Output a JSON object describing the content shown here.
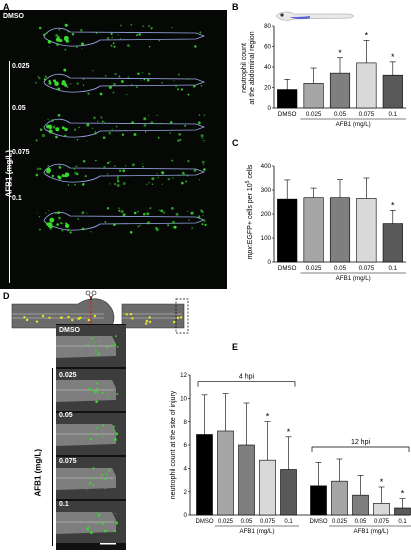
{
  "panels": {
    "A": {
      "letter": "A",
      "control": "DMSO",
      "doses": [
        "0.025",
        "0.05",
        "0.075",
        "0.1"
      ],
      "axis_label": "AFB1 (mg/L)"
    },
    "B": {
      "letter": "B"
    },
    "C": {
      "letter": "C"
    },
    "D": {
      "letter": "D",
      "control": "DMSO",
      "doses": [
        "0.025",
        "0.05",
        "0.075",
        "0.1"
      ],
      "axis_label": "AFB1 (mg/L)"
    },
    "E": {
      "letter": "E"
    }
  },
  "colors": {
    "DMSO": "#000000",
    "0.025": "#a6a6a6",
    "0.05": "#7f7f7f",
    "0.075": "#d9d9d9",
    "0.1": "#595959",
    "fluorescence": "#39d82f",
    "outline": "#9aa8e8"
  },
  "chart_data": [
    {
      "id": "B",
      "type": "bar",
      "categories": [
        "DMSO",
        "0.025",
        "0.05",
        "0.075",
        "0.1"
      ],
      "values": [
        18,
        24,
        34,
        44,
        32
      ],
      "errors": [
        10,
        15,
        15,
        22,
        13
      ],
      "significant": [
        false,
        false,
        true,
        true,
        true
      ],
      "ylabel": "neutrophil count\nat the abdominal region",
      "xlabel": "AFB1 (mg/L)",
      "ylim": [
        0,
        80
      ],
      "yticks": [
        0,
        20,
        40,
        60,
        80
      ]
    },
    {
      "id": "C",
      "type": "bar",
      "categories": [
        "DMSO",
        "0.025",
        "0.05",
        "0.075",
        "0.1"
      ],
      "values": [
        262,
        268,
        268,
        265,
        160
      ],
      "errors": [
        80,
        40,
        75,
        85,
        55
      ],
      "significant": [
        false,
        false,
        false,
        false,
        true
      ],
      "ylabel_italic": "mpx",
      "ylabel_main": ":EGFP+ cells per 10",
      "ylabel_sup": "5",
      "ylabel_end": " cells",
      "xlabel": "AFB1 (mg/L)",
      "ylim": [
        0,
        400
      ],
      "yticks": [
        0,
        100,
        200,
        300,
        400
      ]
    },
    {
      "id": "E",
      "type": "bar",
      "groups": [
        {
          "label": "4 hpi",
          "categories": [
            "DMSO",
            "0.025",
            "0.05",
            "0.075",
            "0.1"
          ],
          "values": [
            6.9,
            7.2,
            6.0,
            4.7,
            3.9
          ],
          "errors": [
            3.4,
            3.2,
            3.6,
            3.3,
            2.8
          ],
          "significant": [
            false,
            false,
            false,
            true,
            true
          ],
          "xlabel": "AFB1 (mg/L)"
        },
        {
          "label": "12 hpi",
          "categories": [
            "DMSO",
            "0.025",
            "0.05",
            "0.075",
            "0.1"
          ],
          "values": [
            2.5,
            2.9,
            1.7,
            1.0,
            0.6
          ],
          "errors": [
            2.0,
            1.9,
            1.7,
            1.4,
            0.8
          ],
          "significant": [
            false,
            false,
            false,
            true,
            true
          ],
          "xlabel": "AFB1 (mg/L)"
        }
      ],
      "ylabel": "neutrophil count at the site of injury",
      "ylim": [
        0,
        12
      ],
      "yticks": [
        0,
        2,
        4,
        6,
        8,
        10,
        12
      ]
    }
  ]
}
